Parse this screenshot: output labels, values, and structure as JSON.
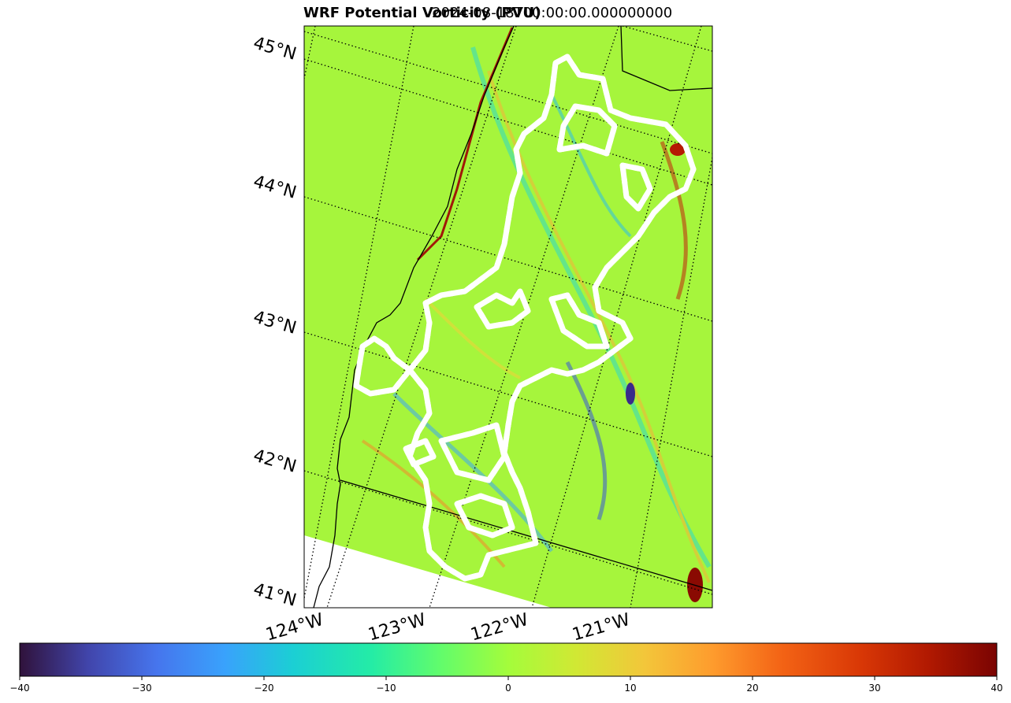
{
  "title": "WRF Potential Vorticity (PVU)",
  "timestamp": "2024-08-18T00:00:00.000000000",
  "lat_labels": [
    "45°N",
    "44°N",
    "43°N",
    "42°N",
    "41°N"
  ],
  "lon_labels": [
    "124°W",
    "123°W",
    "122°W",
    "121°W"
  ],
  "colorbar": {
    "min": -40,
    "max": 40,
    "tick_labels": [
      "−40",
      "−30",
      "−20",
      "−10",
      "0",
      "10",
      "20",
      "30",
      "40"
    ],
    "colormap": "turbo"
  },
  "colors": {
    "background_field": "#a6f53c",
    "coastline": "#000000",
    "fire_perimeter_dash": "#000000",
    "fire_perimeter_outline": "#ffffff"
  }
}
